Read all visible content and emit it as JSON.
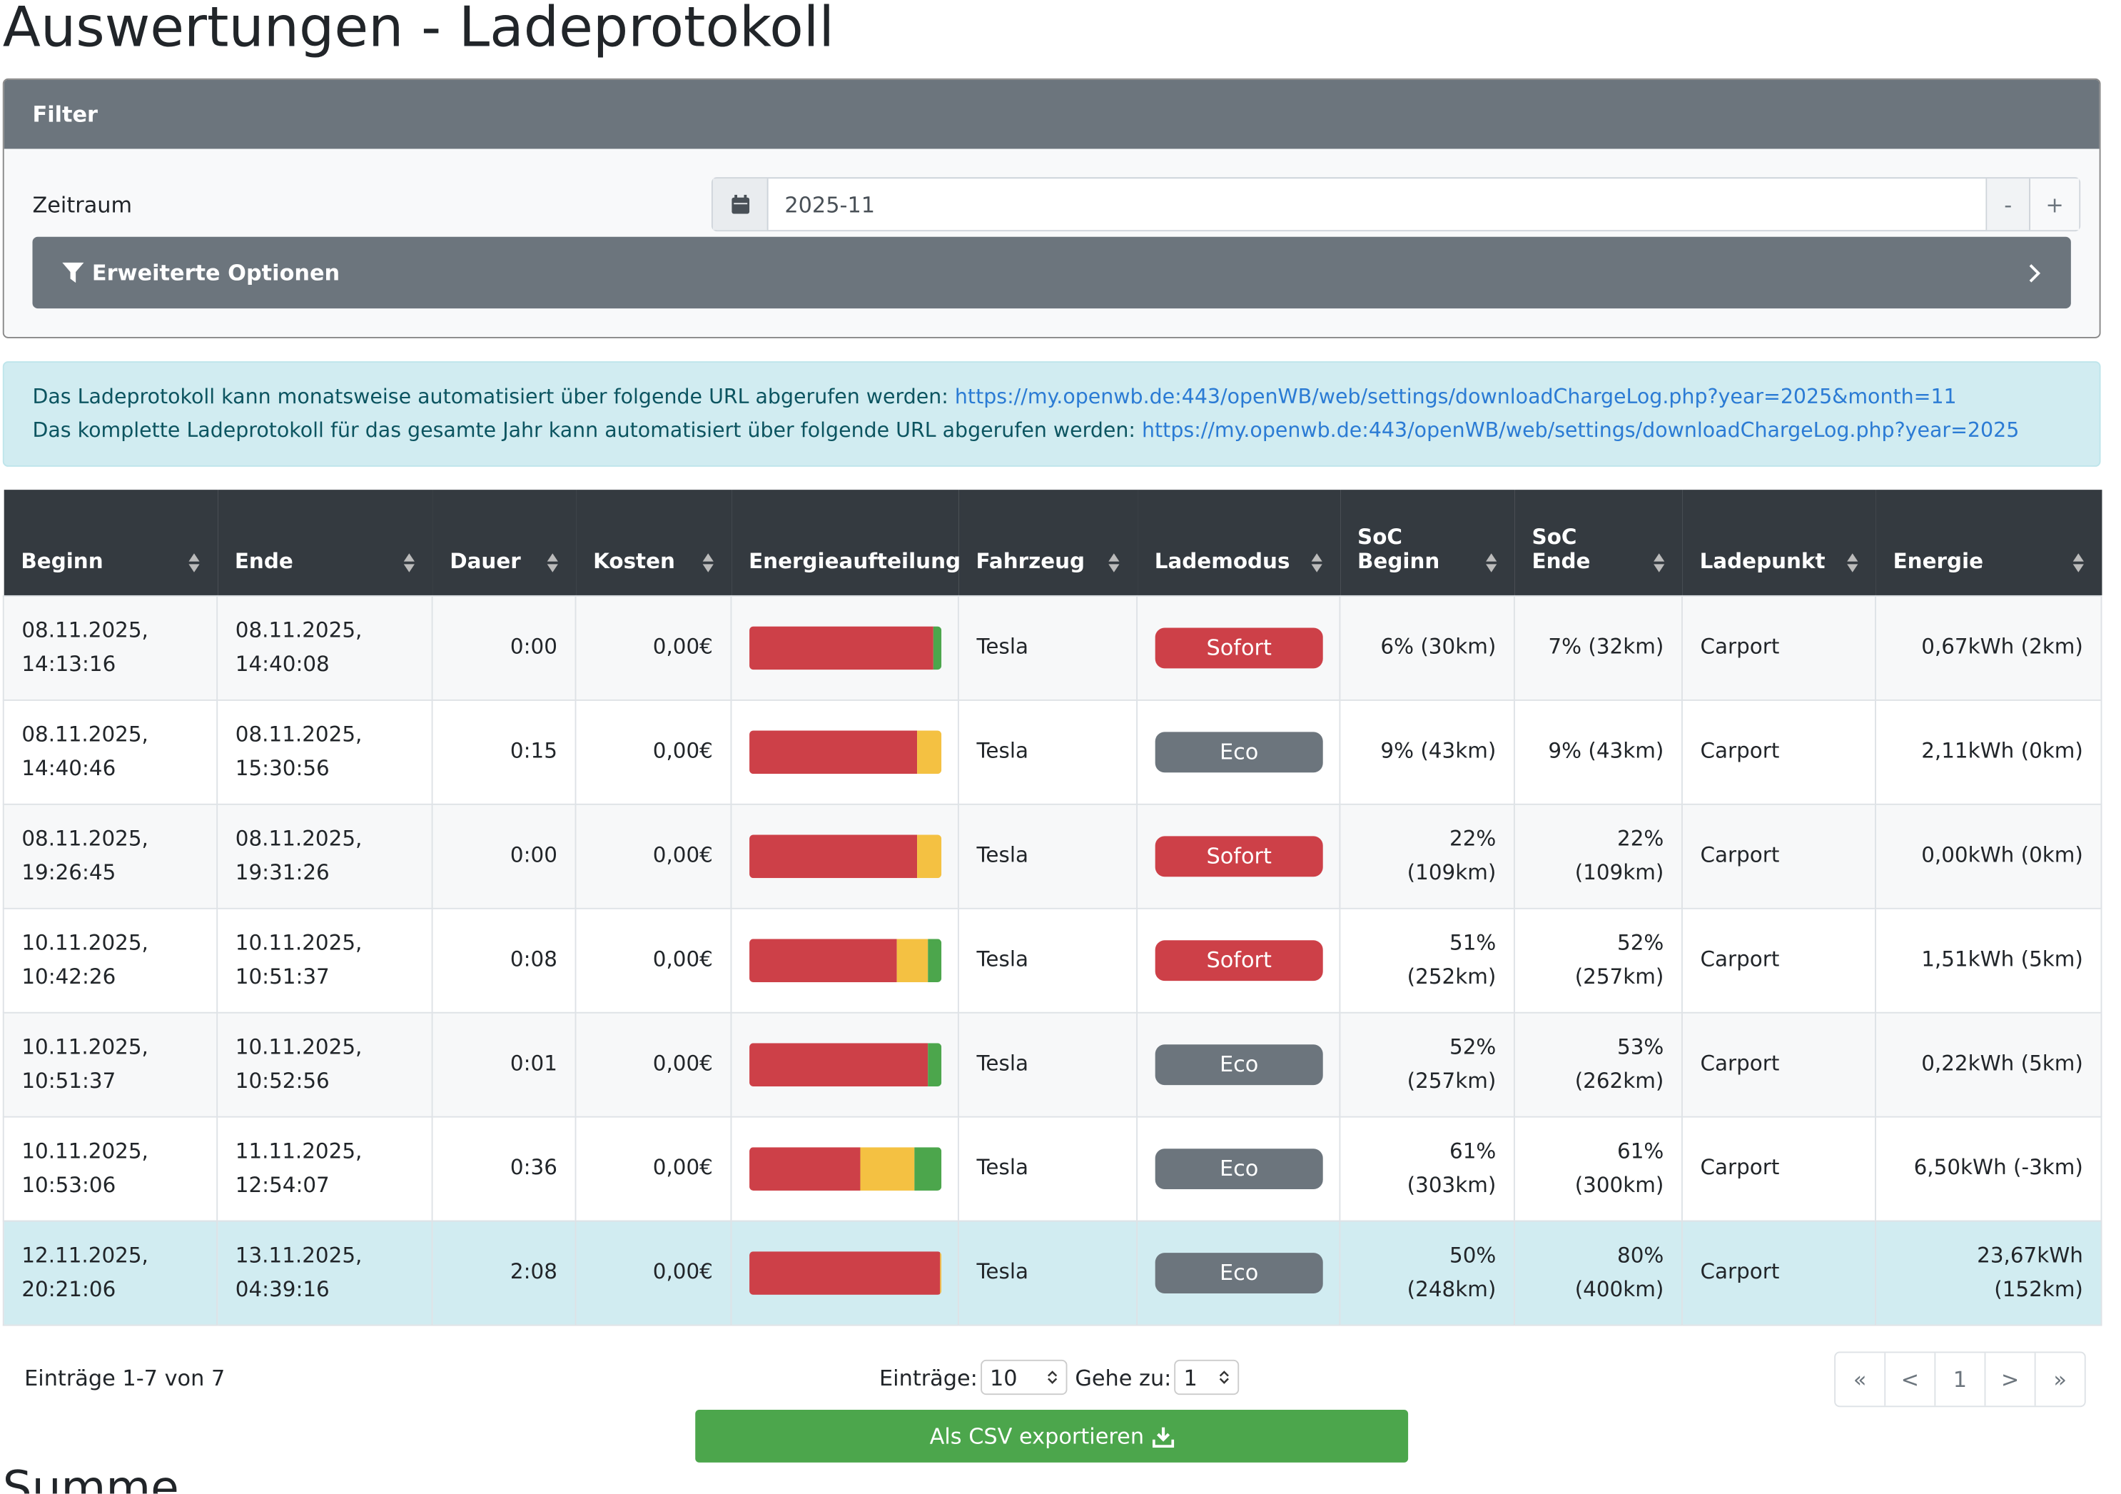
{
  "header": {
    "title": "Auswertungen - Ladeprotokoll"
  },
  "filter": {
    "title": "Filter",
    "label": "Zeitraum",
    "value": "2025-11",
    "minus": "-",
    "plus": "+",
    "advanced": "Erweiterte Optionen"
  },
  "info": {
    "lines": [
      {
        "text": "Das Ladeprotokoll kann monatsweise automatisiert über folgende URL abgerufen werden: ",
        "link": "https://my.openwb.de:443/openWB/web/settings/downloadChargeLog.php?year=2025&month=11"
      },
      {
        "text": "Das komplette Ladeprotokoll für das gesamte Jahr kann automatisiert über folgende URL abgerufen werden: ",
        "link": "https://my.openwb.de:443/openWB/web/settings/downloadChargeLog.php?year=2025"
      }
    ]
  },
  "table": {
    "columns": [
      "Beginn",
      "Ende",
      "Dauer",
      "Kosten",
      "Energieaufteilung",
      "Fahrzeug",
      "Lademodus",
      "SoC Beginn",
      "SoC Ende",
      "Ladepunkt",
      "Energie"
    ],
    "split_colors": [
      "#cd4048",
      "#f4c142",
      "#4ca64c"
    ],
    "badge_colors": {
      "Sofort": "#cd4048",
      "Eco": "#6c757d"
    },
    "highlight_row": 6,
    "rows": [
      [
        "08.11.2025, 14:13:16",
        "08.11.2025, 14:40:08",
        "0:00",
        "0,00€",
        [
          96,
          0,
          4
        ],
        "Tesla",
        "Sofort",
        "6% (30km)",
        "7% (32km)",
        "Carport",
        "0,67kWh (2km)"
      ],
      [
        "08.11.2025, 14:40:46",
        "08.11.2025, 15:30:56",
        "0:15",
        "0,00€",
        [
          87,
          13,
          0
        ],
        "Tesla",
        "Eco",
        "9% (43km)",
        "9% (43km)",
        "Carport",
        "2,11kWh (0km)"
      ],
      [
        "08.11.2025, 19:26:45",
        "08.11.2025, 19:31:26",
        "0:00",
        "0,00€",
        [
          87,
          13,
          0
        ],
        "Tesla",
        "Sofort",
        "22% (109km)",
        "22% (109km)",
        "Carport",
        "0,00kWh (0km)"
      ],
      [
        "10.11.2025, 10:42:26",
        "10.11.2025, 10:51:37",
        "0:08",
        "0,00€",
        [
          77,
          16,
          7
        ],
        "Tesla",
        "Sofort",
        "51% (252km)",
        "52% (257km)",
        "Carport",
        "1,51kWh (5km)"
      ],
      [
        "10.11.2025, 10:51:37",
        "10.11.2025, 10:52:56",
        "0:01",
        "0,00€",
        [
          93,
          0,
          7
        ],
        "Tesla",
        "Eco",
        "52% (257km)",
        "53% (262km)",
        "Carport",
        "0,22kWh (5km)"
      ],
      [
        "10.11.2025, 10:53:06",
        "11.11.2025, 12:54:07",
        "0:36",
        "0,00€",
        [
          58,
          28,
          14
        ],
        "Tesla",
        "Eco",
        "61% (303km)",
        "61% (300km)",
        "Carport",
        "6,50kWh (-3km)"
      ],
      [
        "12.11.2025, 20:21:06",
        "13.11.2025, 04:39:16",
        "2:08",
        "0,00€",
        [
          99,
          1,
          0
        ],
        "Tesla",
        "Eco",
        "50% (248km)",
        "80% (400km)",
        "Carport",
        "23,67kWh (152km)"
      ]
    ]
  },
  "footer": {
    "entries_info": "Einträge 1-7 von 7",
    "per_page_label": "Einträge:",
    "per_page": "10",
    "goto_label": "Gehe zu:",
    "goto": "1",
    "pages": [
      "«",
      "<",
      "1",
      ">",
      "»"
    ],
    "export": "Als CSV exportieren"
  },
  "summary": {
    "title": "Summe"
  }
}
